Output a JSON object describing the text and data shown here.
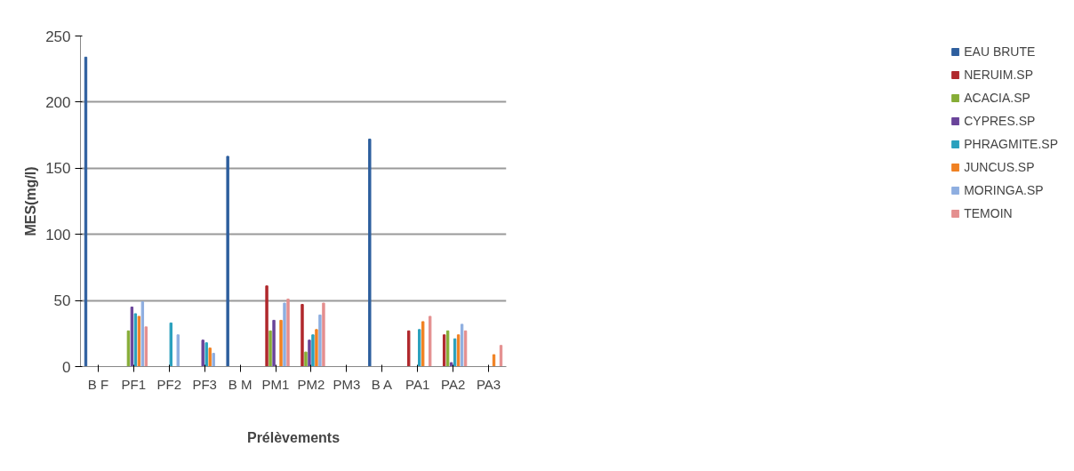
{
  "chart_data": {
    "type": "bar",
    "xlabel": "Prélèvements",
    "ylabel": "MES(mg/l)",
    "categories": [
      "B F",
      "PF1",
      "PF2",
      "PF3",
      "B M",
      "PM1",
      "PM2",
      "PM3",
      "B A",
      "PA1",
      "PA2",
      "PA3"
    ],
    "ylim": [
      0,
      250
    ],
    "yticks": [
      0,
      50,
      100,
      150,
      200,
      250
    ],
    "grid": "y",
    "legend": "right",
    "series": [
      {
        "name": "EAU BRUTE",
        "color": "#2e5f9e",
        "values": [
          234,
          null,
          null,
          null,
          159,
          null,
          null,
          null,
          172,
          null,
          null,
          null
        ]
      },
      {
        "name": "NERUIM.SP",
        "color": "#b0282c",
        "values": [
          null,
          0,
          0,
          0,
          null,
          61,
          47,
          0,
          null,
          27,
          24,
          0
        ]
      },
      {
        "name": "ACACIA.SP",
        "color": "#86ad36",
        "values": [
          null,
          27,
          0,
          0,
          null,
          27,
          11,
          0,
          null,
          0,
          27,
          0
        ]
      },
      {
        "name": "CYPRES.SP",
        "color": "#6a449a",
        "values": [
          null,
          45,
          0,
          20,
          null,
          35,
          20,
          0,
          null,
          0,
          3,
          0
        ]
      },
      {
        "name": "PHRAGMITE.SP",
        "color": "#2aa0bd",
        "values": [
          null,
          40,
          33,
          18,
          null,
          0,
          24,
          0,
          null,
          28,
          21,
          0
        ]
      },
      {
        "name": "JUNCUS.SP",
        "color": "#f08122",
        "values": [
          null,
          38,
          0,
          14,
          null,
          35,
          28,
          0,
          null,
          34,
          24,
          9
        ]
      },
      {
        "name": "MORINGA.SP",
        "color": "#8eaee0",
        "values": [
          null,
          49,
          24,
          10,
          null,
          48,
          39,
          0,
          null,
          0,
          32,
          0
        ]
      },
      {
        "name": "TEMOIN",
        "color": "#e48f8f",
        "values": [
          null,
          30,
          0,
          0,
          null,
          51,
          48,
          0,
          null,
          38,
          27,
          16
        ]
      }
    ]
  }
}
